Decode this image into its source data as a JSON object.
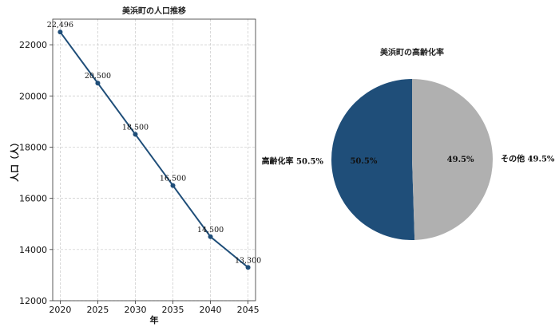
{
  "chart_data": [
    {
      "type": "line",
      "title": "美浜町の人口推移",
      "xlabel": "年",
      "ylabel": "人口（人）",
      "x": [
        2020,
        2025,
        2030,
        2035,
        2040,
        2045
      ],
      "series": [
        {
          "values": [
            22496,
            20500,
            18500,
            16500,
            14500,
            13300
          ]
        }
      ],
      "data_labels": [
        "22,496",
        "20,500",
        "18,500",
        "16,500",
        "14,500",
        "13,300"
      ],
      "xlim": [
        2019,
        2046
      ],
      "ylim": [
        12000,
        23000
      ],
      "xticks": [
        "2020",
        "2025",
        "2030",
        "2035",
        "2040",
        "2045"
      ],
      "yticks": [
        "12000",
        "14000",
        "16000",
        "18000",
        "20000",
        "22000"
      ],
      "ytick_values": [
        12000,
        14000,
        16000,
        18000,
        20000,
        22000
      ],
      "grid": true,
      "color": "#1f4e79"
    },
    {
      "type": "pie",
      "title": "美浜町の高齢化率",
      "slices": [
        {
          "label": "高齢化率",
          "value": 50.5,
          "outer_label": "高齢化率 50.5%",
          "inner_label": "50.5%",
          "color": "#1f4e79"
        },
        {
          "label": "その他",
          "value": 49.5,
          "outer_label": "その他 49.5%",
          "inner_label": "49.5%",
          "color": "#b0b0b0"
        }
      ]
    }
  ]
}
